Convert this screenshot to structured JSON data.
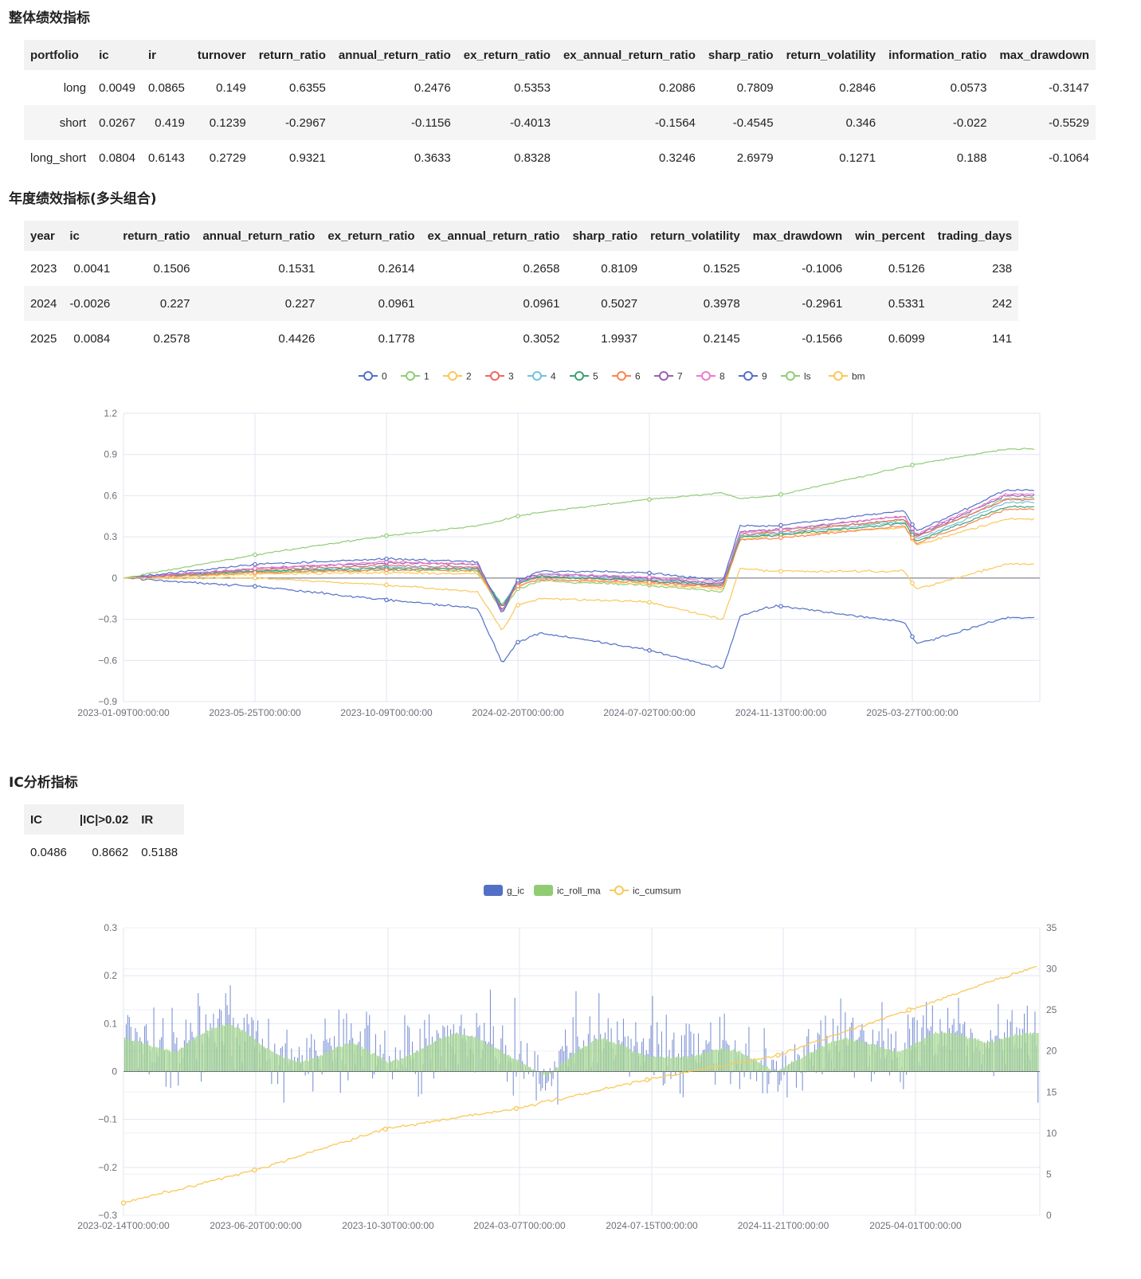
{
  "overall": {
    "title": "整体绩效指标",
    "columns": [
      "portfolio",
      "ic",
      "ir",
      "turnover",
      "return_ratio",
      "annual_return_ratio",
      "ex_return_ratio",
      "ex_annual_return_ratio",
      "sharp_ratio",
      "return_volatility",
      "information_ratio",
      "max_drawdown"
    ],
    "rows": [
      [
        "long",
        "0.0049",
        "0.0865",
        "0.149",
        "0.6355",
        "0.2476",
        "0.5353",
        "0.2086",
        "0.7809",
        "0.2846",
        "0.0573",
        "-0.3147"
      ],
      [
        "short",
        "0.0267",
        "0.419",
        "0.1239",
        "-0.2967",
        "-0.1156",
        "-0.4013",
        "-0.1564",
        "-0.4545",
        "0.346",
        "-0.022",
        "-0.5529"
      ],
      [
        "long_short",
        "0.0804",
        "0.6143",
        "0.2729",
        "0.9321",
        "0.3633",
        "0.8328",
        "0.3246",
        "2.6979",
        "0.1271",
        "0.188",
        "-0.1064"
      ]
    ]
  },
  "yearly": {
    "title": "年度绩效指标(多头组合)",
    "columns": [
      "year",
      "ic",
      "return_ratio",
      "annual_return_ratio",
      "ex_return_ratio",
      "ex_annual_return_ratio",
      "sharp_ratio",
      "return_volatility",
      "max_drawdown",
      "win_percent",
      "trading_days"
    ],
    "rows": [
      [
        "2023",
        "0.0041",
        "0.1506",
        "0.1531",
        "0.2614",
        "0.2658",
        "0.8109",
        "0.1525",
        "-0.1006",
        "0.5126",
        "238"
      ],
      [
        "2024",
        "-0.0026",
        "0.227",
        "0.227",
        "0.0961",
        "0.0961",
        "0.5027",
        "0.3978",
        "-0.2961",
        "0.5331",
        "242"
      ],
      [
        "2025",
        "0.0084",
        "0.2578",
        "0.4426",
        "0.1778",
        "0.3052",
        "1.9937",
        "0.2145",
        "-0.1566",
        "0.6099",
        "141"
      ]
    ]
  },
  "ic_section": {
    "title": "IC分析指标",
    "columns": [
      "IC",
      "|IC|>0.02",
      "IR"
    ],
    "values": [
      "0.0486",
      "0.8662",
      "0.5188"
    ]
  },
  "colors": {
    "0": "#5470c6",
    "1": "#91cc75",
    "2": "#fac858",
    "3": "#ee6666",
    "4": "#73c0de",
    "5": "#3ba272",
    "6": "#fc8452",
    "7": "#9a60b4",
    "8": "#ea7ccc",
    "9": "#5470c6",
    "ls": "#91cc75",
    "bm": "#fac858"
  },
  "chart_data": [
    {
      "type": "line",
      "legend": [
        "0",
        "1",
        "2",
        "3",
        "4",
        "5",
        "6",
        "7",
        "8",
        "9",
        "ls",
        "bm"
      ],
      "legend_position": "top-center",
      "x_tick_labels": [
        "2023-01-09T00:00:00",
        "2023-05-25T00:00:00",
        "2023-10-09T00:00:00",
        "2024-02-20T00:00:00",
        "2024-07-02T00:00:00",
        "2024-11-13T00:00:00",
        "2025-03-27T00:00:00"
      ],
      "ylim": [
        -0.9,
        1.2
      ],
      "y_ticks": [
        "1.2",
        "0.9",
        "0.6",
        "0.3",
        "0",
        "−0.3",
        "−0.6",
        "−0.9"
      ],
      "grid": true,
      "x_dates": [
        "2023-01-09",
        "2023-05-25",
        "2023-10-09",
        "2024-01-10",
        "2024-02-05",
        "2024-02-20",
        "2024-03-15",
        "2024-07-02",
        "2024-09-20",
        "2024-10-08",
        "2024-11-13",
        "2025-03-27",
        "2025-04-08",
        "2025-07-10"
      ],
      "series": [
        {
          "name": "0",
          "values": [
            0,
            -0.06,
            -0.16,
            -0.22,
            -0.62,
            -0.47,
            -0.4,
            -0.52,
            -0.66,
            -0.28,
            -0.2,
            -0.32,
            -0.48,
            -0.29
          ]
        },
        {
          "name": "1",
          "values": [
            0,
            0.04,
            0.06,
            0.05,
            -0.25,
            -0.08,
            -0.02,
            -0.05,
            -0.1,
            0.3,
            0.35,
            0.42,
            0.3,
            0.58
          ]
        },
        {
          "name": "2",
          "values": [
            0,
            0.03,
            0.04,
            0.03,
            -0.2,
            -0.06,
            -0.01,
            -0.04,
            -0.08,
            0.28,
            0.31,
            0.37,
            0.24,
            0.43
          ]
        },
        {
          "name": "3",
          "values": [
            0,
            0.06,
            0.09,
            0.08,
            -0.22,
            -0.04,
            0.01,
            -0.02,
            -0.06,
            0.32,
            0.33,
            0.43,
            0.3,
            0.57
          ]
        },
        {
          "name": "4",
          "values": [
            0,
            0.05,
            0.08,
            0.07,
            -0.2,
            -0.03,
            0.02,
            -0.01,
            -0.05,
            0.31,
            0.32,
            0.41,
            0.28,
            0.55
          ]
        },
        {
          "name": "5",
          "values": [
            0,
            0.05,
            0.07,
            0.07,
            -0.21,
            -0.04,
            0.01,
            -0.02,
            -0.05,
            0.3,
            0.31,
            0.4,
            0.27,
            0.52
          ]
        },
        {
          "name": "6",
          "values": [
            0,
            0.04,
            0.06,
            0.06,
            -0.23,
            -0.06,
            -0.01,
            -0.03,
            -0.07,
            0.28,
            0.29,
            0.38,
            0.25,
            0.5
          ]
        },
        {
          "name": "7",
          "values": [
            0,
            0.07,
            0.11,
            0.1,
            -0.24,
            -0.03,
            0.03,
            0,
            -0.04,
            0.34,
            0.35,
            0.45,
            0.31,
            0.6
          ]
        },
        {
          "name": "8",
          "values": [
            0,
            0.07,
            0.12,
            0.1,
            -0.25,
            -0.03,
            0.03,
            0.01,
            -0.03,
            0.33,
            0.35,
            0.45,
            0.32,
            0.61
          ]
        },
        {
          "name": "9",
          "values": [
            0,
            0.1,
            0.14,
            0.12,
            -0.26,
            -0.02,
            0.05,
            0.04,
            -0.02,
            0.38,
            0.38,
            0.49,
            0.34,
            0.64
          ]
        },
        {
          "name": "ls",
          "values": [
            0,
            0.17,
            0.31,
            0.38,
            0.42,
            0.45,
            0.48,
            0.57,
            0.62,
            0.58,
            0.6,
            0.81,
            0.83,
            0.94
          ]
        },
        {
          "name": "bm",
          "values": [
            0,
            0,
            -0.05,
            -0.1,
            -0.38,
            -0.2,
            -0.15,
            -0.17,
            -0.3,
            0.07,
            0.05,
            0.05,
            -0.08,
            0.1
          ]
        }
      ]
    },
    {
      "type": "bar",
      "legend": [
        "g_ic",
        "ic_roll_ma",
        "ic_cumsum"
      ],
      "legend_position": "top-center",
      "x_tick_labels": [
        "2023-02-14T00:00:00",
        "2023-06-20T00:00:00",
        "2023-10-30T00:00:00",
        "2024-03-07T00:00:00",
        "2024-07-15T00:00:00",
        "2024-11-21T00:00:00",
        "2025-04-01T00:00:00"
      ],
      "ylim_left": [
        -0.3,
        0.3
      ],
      "y_ticks_left": [
        "0.3",
        "0.2",
        "0.1",
        "0",
        "−0.1",
        "−0.2",
        "−0.3"
      ],
      "ylim_right": [
        0,
        35
      ],
      "y_ticks_right": [
        "35",
        "30",
        "25",
        "20",
        "15",
        "10",
        "5",
        "0"
      ],
      "grid": true,
      "ic_roll_ma_profile": [
        0.07,
        0.06,
        0.05,
        0.04,
        0.07,
        0.09,
        0.1,
        0.08,
        0.05,
        0.03,
        0.02,
        0.03,
        0.05,
        0.06,
        0.04,
        0.02,
        0.03,
        0.05,
        0.07,
        0.08,
        0.07,
        0.05,
        0.03,
        0.01,
        -0.01,
        0.02,
        0.05,
        0.07,
        0.06,
        0.04,
        0.03,
        0.03,
        0.03,
        0.04,
        0.05,
        0.04,
        0.02,
        0.0,
        0.02,
        0.04,
        0.06,
        0.07,
        0.06,
        0.05,
        0.04,
        0.06,
        0.08,
        0.08,
        0.07,
        0.06,
        0.07,
        0.08,
        0.08
      ],
      "ic_cumsum_points": [
        [
          0,
          1.5
        ],
        [
          1,
          5.5
        ],
        [
          2,
          10.5
        ],
        [
          3,
          13
        ],
        [
          4,
          16.5
        ],
        [
          5,
          19.5
        ],
        [
          6,
          25
        ],
        [
          7,
          30.5
        ]
      ]
    }
  ]
}
